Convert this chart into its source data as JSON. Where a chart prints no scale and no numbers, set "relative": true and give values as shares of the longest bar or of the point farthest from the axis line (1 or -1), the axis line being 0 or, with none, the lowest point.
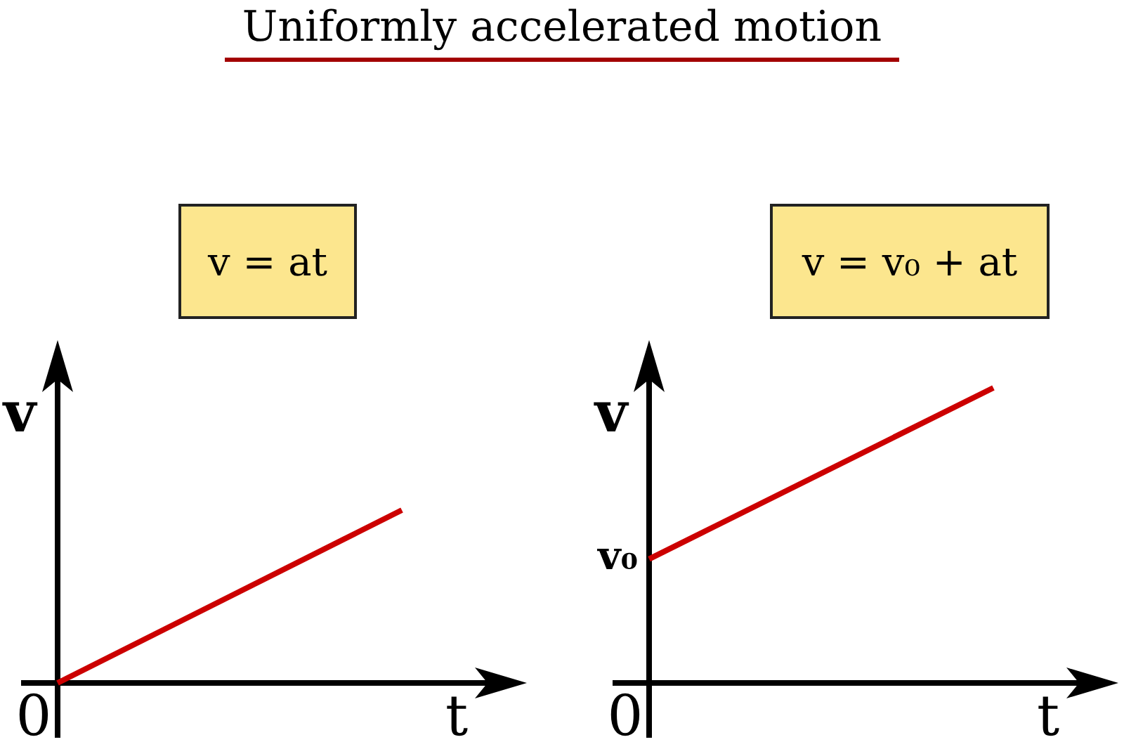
{
  "chart_data": [
    {
      "type": "line",
      "title": "Uniformly accelerated motion",
      "subtitle": "v = at",
      "xlabel": "t",
      "ylabel": "v",
      "relative": true,
      "categories": [
        null,
        null
      ],
      "series": [
        {
          "color": "#cc0000",
          "values": [
            0,
            1
          ]
        }
      ],
      "marker": "none",
      "annotations": [
        "0"
      ]
    },
    {
      "type": "line",
      "subtitle": "v = v₀ + at",
      "xlabel": "t",
      "ylabel": "v",
      "relative": true,
      "categories": [
        null,
        null
      ],
      "series": [
        {
          "color": "#cc0000",
          "values": [
            0.42,
            1
          ]
        }
      ],
      "marker": "none",
      "annotations": [
        "0",
        "v₀"
      ]
    }
  ]
}
